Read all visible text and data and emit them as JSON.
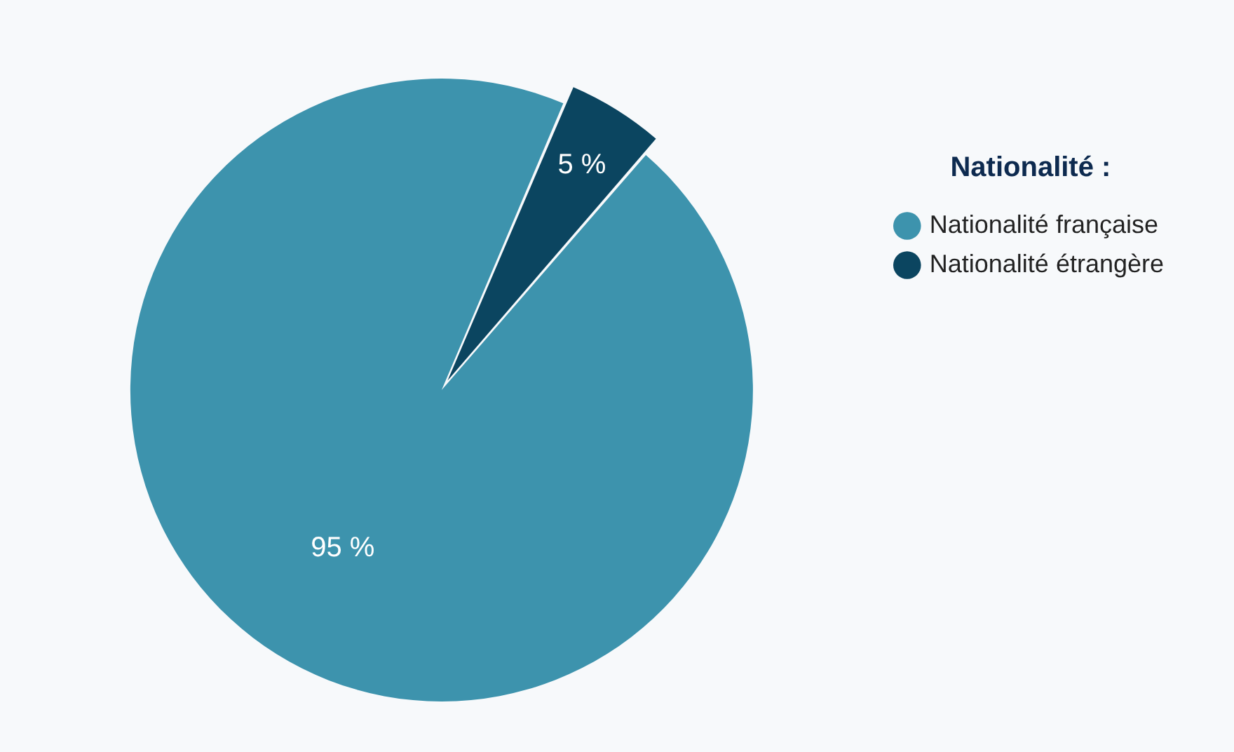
{
  "chart_data": {
    "type": "pie",
    "legend_title": "Nationalité :",
    "categories": [
      "Nationalité française",
      "Nationalité étrangère"
    ],
    "values": [
      95,
      5
    ],
    "colors": [
      "#3d93ad",
      "#0b4560"
    ],
    "value_labels": [
      "95 %",
      "5 %"
    ],
    "legend": "right"
  }
}
